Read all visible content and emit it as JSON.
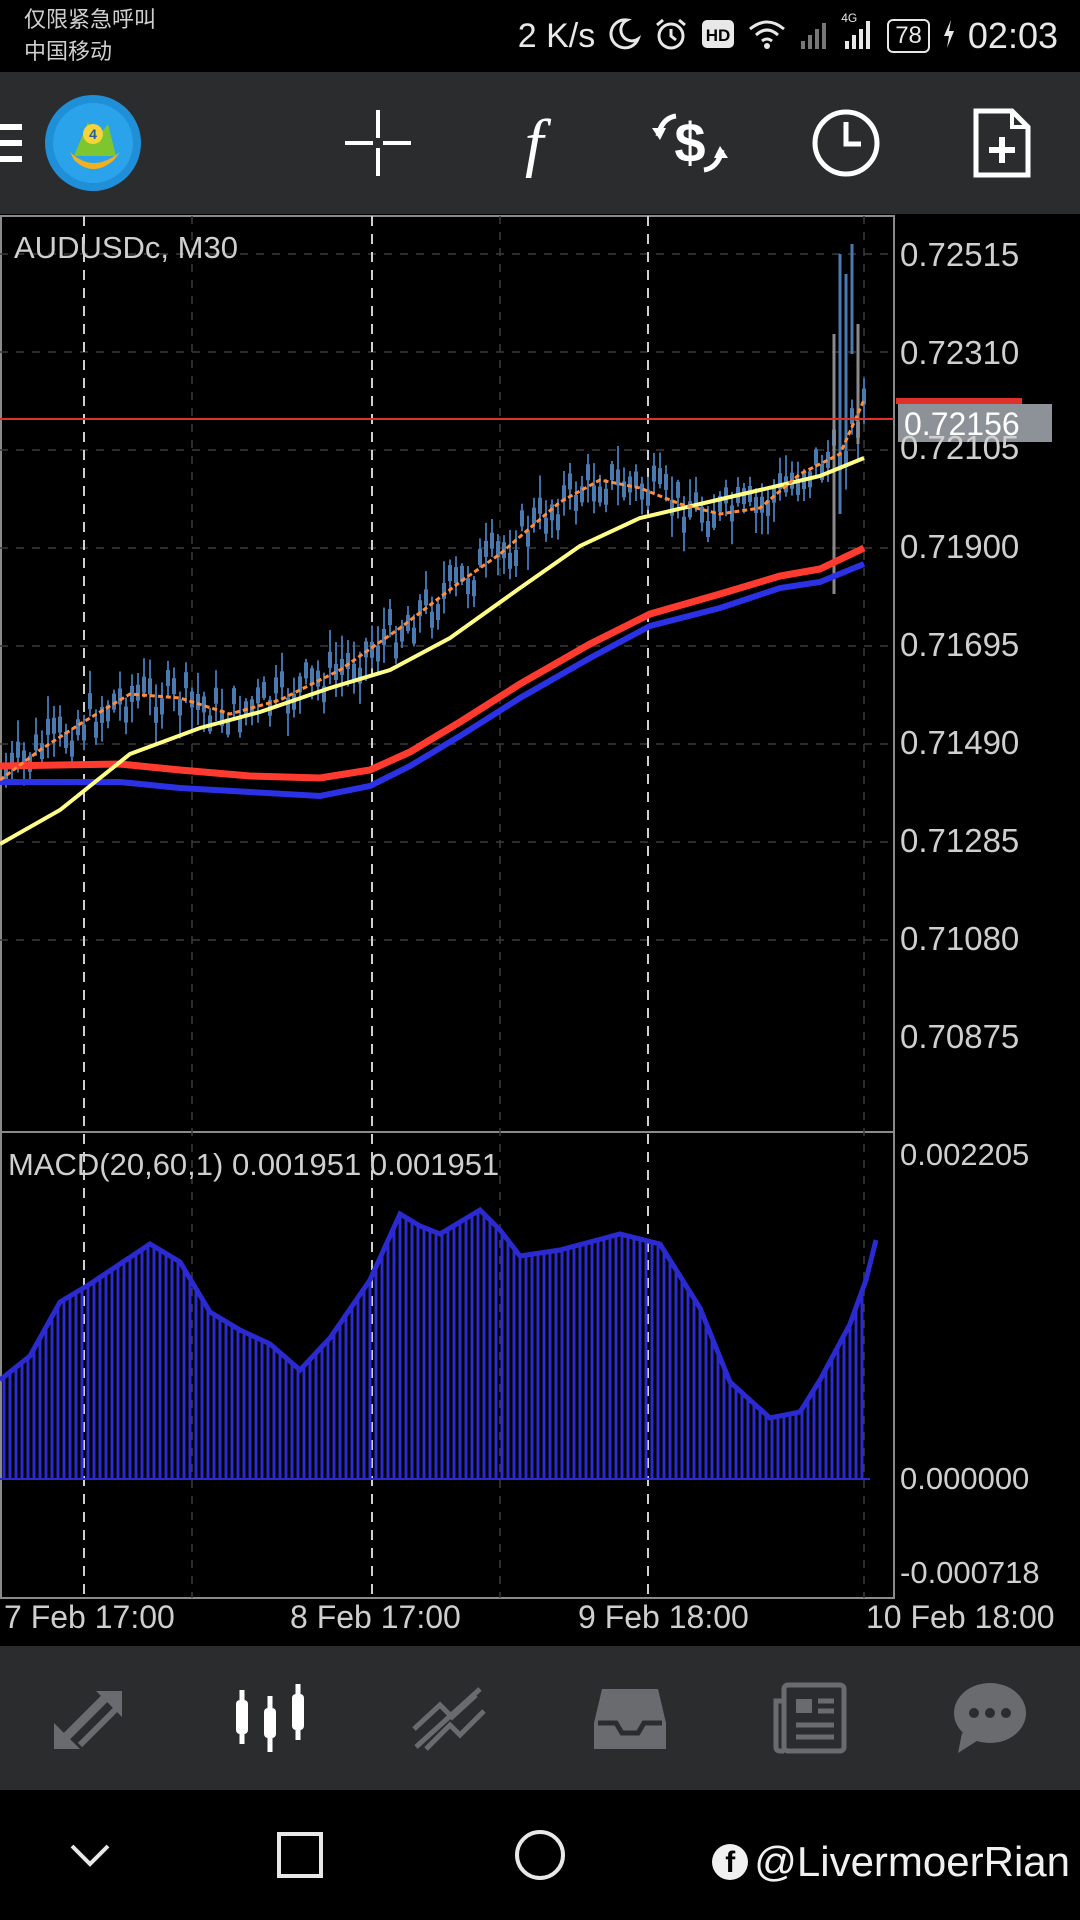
{
  "status_bar": {
    "carrier_line1": "仅限紧急呼叫",
    "carrier_line2": "中国移动",
    "net_speed": "2 K/s",
    "hd": "HD",
    "cell": "4G",
    "battery": "78",
    "time": "02:03"
  },
  "toolbar": {
    "icons": [
      "menu-icon",
      "metatrader-logo-icon",
      "crosshair-icon",
      "indicator-f-icon",
      "dollar-arrows-icon",
      "clock-icon",
      "new-document-icon"
    ]
  },
  "chart": {
    "symbol_label": "AUDUSDc, M30",
    "price_ticks": [
      "0.72515",
      "0.72310",
      "0.72105",
      "0.71900",
      "0.71695",
      "0.71490",
      "0.71285",
      "0.71080",
      "0.70875"
    ],
    "current_price": "0.72156",
    "macd_label": "MACD(20,60,1) 0.001951 0.001951",
    "macd_ticks": [
      "0.002205",
      "0.000000",
      "-0.000718"
    ],
    "time_labels": [
      "7 Feb 17:00",
      "8 Feb 17:00",
      "9 Feb 18:00",
      "10 Feb 18:00"
    ],
    "colors": {
      "price_line": "#e0302a",
      "current_label_bg": "#8d9298",
      "ma_red": "#ff3b2f",
      "ma_blue": "#2b32e6",
      "ma_yellow": "#ffff88",
      "ma_orange": "#ff8c3c",
      "macd_bars": "#2a2ad0",
      "candles": "#4a7ab0"
    }
  },
  "bottom_nav": {
    "icons": [
      "quotes-icon",
      "chart-icon",
      "trade-icon",
      "history-icon",
      "news-icon",
      "chat-icon"
    ],
    "active": "chart-icon"
  },
  "system_nav": {
    "watermark": "@LivermoerRian",
    "fb_glyph": "f"
  }
}
